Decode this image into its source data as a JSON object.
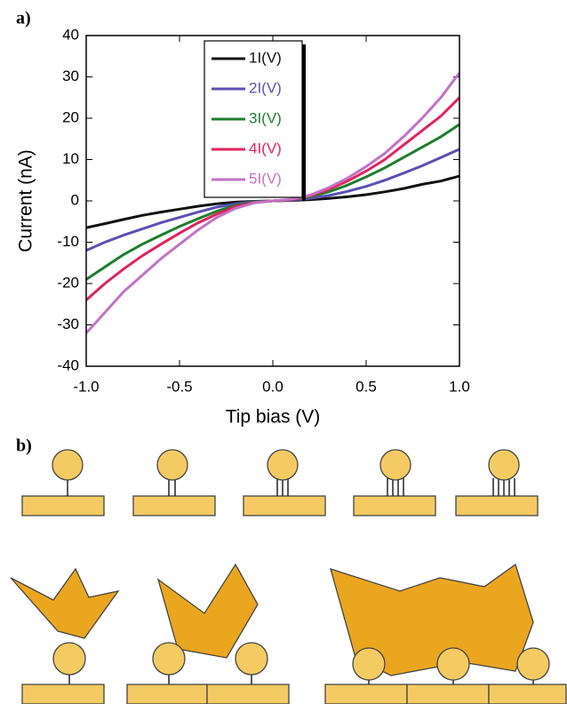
{
  "figure": {
    "panel_a": "a)",
    "panel_b": "b)"
  },
  "chart_data": {
    "type": "line",
    "x_label": "Tip bias (V)",
    "y_label": "Current (nA)",
    "x": [
      -1.0,
      -0.9,
      -0.8,
      -0.7,
      -0.6,
      -0.5,
      -0.4,
      -0.3,
      -0.2,
      -0.1,
      0.0,
      0.1,
      0.2,
      0.3,
      0.4,
      0.5,
      0.6,
      0.7,
      0.8,
      0.9,
      1.0
    ],
    "series": [
      {
        "name": "1I(V)",
        "color": "#111111",
        "values": [
          -6.5,
          -5.5,
          -4.5,
          -3.5,
          -2.7,
          -2,
          -1.3,
          -0.7,
          -0.3,
          -0.1,
          0,
          0.1,
          0.3,
          0.6,
          1,
          1.5,
          2.2,
          3,
          4,
          4.8,
          6
        ]
      },
      {
        "name": "2I(V)",
        "color": "#5b50b4",
        "values": [
          -12,
          -10,
          -8.3,
          -6.8,
          -5.3,
          -4,
          -2.7,
          -1.5,
          -0.7,
          -0.2,
          0,
          0.2,
          0.6,
          1.3,
          2.3,
          3.5,
          5,
          6.7,
          8.5,
          10.5,
          12.5
        ]
      },
      {
        "name": "3I(V)",
        "color": "#1e7d2e",
        "values": [
          -19,
          -16,
          -13,
          -10.5,
          -8.3,
          -6.2,
          -4.3,
          -2.5,
          -1.1,
          -0.3,
          0,
          0.3,
          1,
          2.2,
          3.8,
          5.8,
          8,
          10.5,
          13,
          15.5,
          18.5
        ]
      },
      {
        "name": "4I(V)",
        "color": "#e0245e",
        "values": [
          -24,
          -20,
          -16.5,
          -13.3,
          -10.5,
          -7.8,
          -5.3,
          -3.2,
          -1.4,
          -0.4,
          0,
          0.3,
          1.2,
          2.8,
          4.8,
          7.2,
          10,
          13.5,
          17,
          20.5,
          25
        ]
      },
      {
        "name": "5I(V)",
        "color": "#c272c4",
        "values": [
          -32,
          -27,
          -22,
          -18,
          -14,
          -10.5,
          -7,
          -4,
          -1.8,
          -0.5,
          0,
          0.4,
          1.4,
          3.2,
          5.5,
          8.3,
          11.5,
          15.5,
          20,
          25,
          31
        ]
      }
    ],
    "xlim": [
      -1.0,
      1.0
    ],
    "xticks": [
      {
        "value": -1.0,
        "label": "-1.0"
      },
      {
        "value": -0.5,
        "label": "-0.5"
      },
      {
        "value": 0.0,
        "label": "0.0"
      },
      {
        "value": 0.5,
        "label": "0.5"
      },
      {
        "value": 1.0,
        "label": "1.0"
      }
    ],
    "ylim": [
      -40,
      40
    ],
    "yticks": [
      -40,
      -30,
      -20,
      -10,
      0,
      10,
      20,
      30,
      40
    ],
    "grid": false
  }
}
